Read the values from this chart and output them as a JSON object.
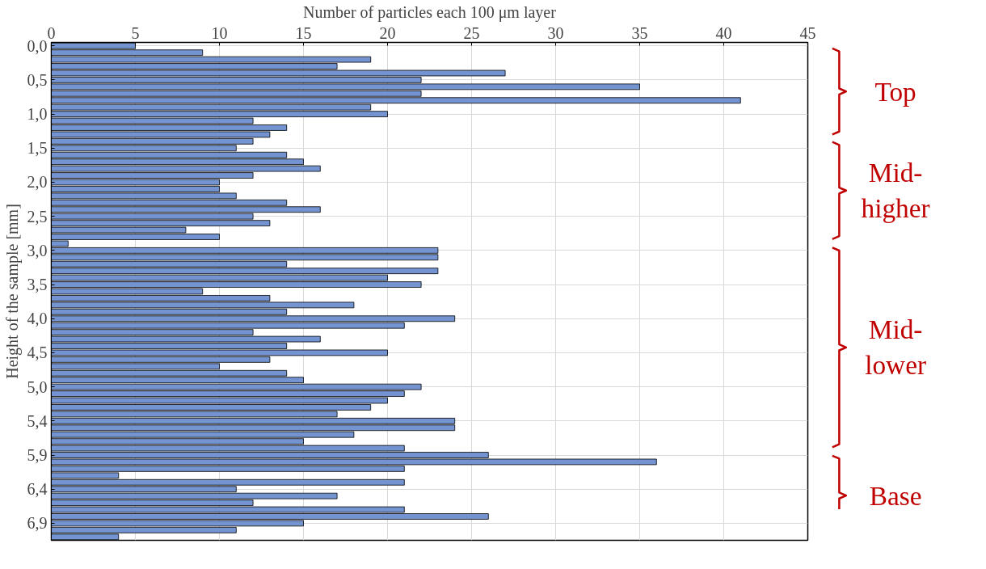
{
  "chart_data": {
    "type": "bar",
    "orientation": "horizontal",
    "xlabel": "Number of particles each 100 μm layer",
    "ylabel": "Height of the sample [mm]",
    "categories": [
      "0,0",
      null,
      null,
      null,
      null,
      "0,5",
      null,
      null,
      null,
      null,
      "1,0",
      null,
      null,
      null,
      null,
      "1,5",
      null,
      null,
      null,
      null,
      "2,0",
      null,
      null,
      null,
      null,
      "2,5",
      null,
      null,
      null,
      null,
      "3,0",
      null,
      null,
      null,
      null,
      "3,5",
      null,
      null,
      null,
      null,
      "4,0",
      null,
      null,
      null,
      null,
      "4,5",
      null,
      null,
      null,
      null,
      "5,0",
      null,
      null,
      null,
      null,
      "5,4",
      null,
      null,
      null,
      null,
      "5,9",
      null,
      null,
      null,
      null,
      "6,4",
      null,
      null,
      null,
      null,
      "6,9",
      null,
      null
    ],
    "values": [
      5,
      9,
      19,
      17,
      27,
      22,
      35,
      22,
      41,
      19,
      20,
      12,
      14,
      13,
      12,
      11,
      14,
      15,
      16,
      12,
      10,
      10,
      11,
      14,
      16,
      12,
      13,
      8,
      10,
      1,
      23,
      23,
      14,
      23,
      20,
      22,
      9,
      13,
      18,
      14,
      24,
      21,
      12,
      16,
      14,
      20,
      13,
      10,
      14,
      15,
      22,
      21,
      20,
      19,
      17,
      24,
      24,
      18,
      15,
      21,
      26,
      36,
      21,
      4,
      21,
      11,
      17,
      12,
      21,
      26,
      15,
      11,
      4
    ],
    "color": "#7394d0",
    "xlim": [
      0,
      45
    ],
    "xticks": [
      0,
      5,
      10,
      15,
      20,
      25,
      30,
      35,
      40,
      45
    ],
    "grid": true,
    "annotations": [
      "Top",
      "Mid-\nhigher",
      "Mid-\nlower",
      "Base"
    ]
  }
}
